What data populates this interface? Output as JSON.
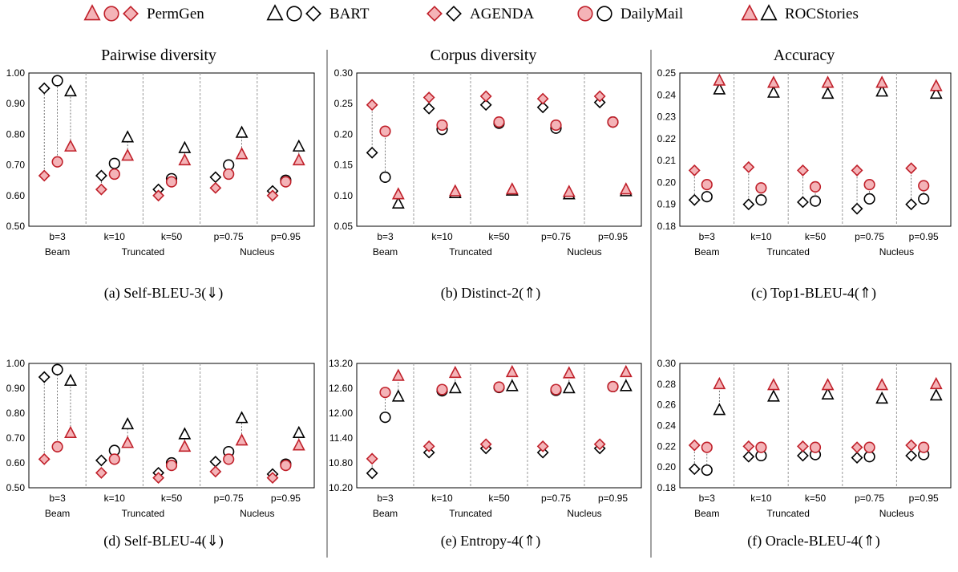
{
  "legend": {
    "items": [
      {
        "label": "PermGen",
        "symbols": [
          "triangle",
          "circle",
          "diamond"
        ],
        "style": "permgen"
      },
      {
        "label": "BART",
        "symbols": [
          "triangle",
          "circle",
          "diamond"
        ],
        "style": "bart"
      },
      {
        "label": "AGENDA",
        "symbols": [
          "diamond-red",
          "diamond-black"
        ]
      },
      {
        "label": "DailyMail",
        "symbols": [
          "circle-red",
          "circle-black"
        ]
      },
      {
        "label": "ROCStories",
        "symbols": [
          "triangle-red",
          "triangle-black"
        ]
      }
    ]
  },
  "column_titles": [
    "Pairwise diversity",
    "Corpus diversity",
    "Accuracy"
  ],
  "colors": {
    "permgen_fill": "#f4b3b7",
    "permgen_stroke": "#c0202a",
    "bart_stroke": "#000000"
  },
  "chart_data": [
    {
      "type": "scatter",
      "caption": "(a)  Self-BLEU-3(⇓)",
      "ylim": [
        0.5,
        1.0
      ],
      "yticks": [
        "0.50",
        "0.60",
        "0.70",
        "0.80",
        "0.90",
        "1.00"
      ],
      "categories": [
        "b=3",
        "k=10",
        "k=50",
        "p=0.75",
        "p=0.95"
      ],
      "groups": [
        {
          "label": "Beam",
          "span": [
            0,
            0
          ]
        },
        {
          "label": "Truncated",
          "span": [
            1,
            2
          ]
        },
        {
          "label": "Nucleus",
          "span": [
            3,
            4
          ]
        }
      ],
      "series": [
        {
          "name": "AGENDA",
          "model": "PermGen",
          "values": [
            0.665,
            0.62,
            0.6,
            0.625,
            0.6
          ]
        },
        {
          "name": "AGENDA",
          "model": "BART",
          "values": [
            0.95,
            0.665,
            0.62,
            0.66,
            0.615
          ]
        },
        {
          "name": "DailyMail",
          "model": "PermGen",
          "values": [
            0.71,
            0.67,
            0.645,
            0.67,
            0.645
          ]
        },
        {
          "name": "DailyMail",
          "model": "BART",
          "values": [
            0.975,
            0.705,
            0.655,
            0.7,
            0.65
          ]
        },
        {
          "name": "ROCStories",
          "model": "PermGen",
          "values": [
            0.76,
            0.73,
            0.715,
            0.735,
            0.715
          ]
        },
        {
          "name": "ROCStories",
          "model": "BART",
          "values": [
            0.94,
            0.79,
            0.755,
            0.805,
            0.76
          ]
        }
      ]
    },
    {
      "type": "scatter",
      "caption": "(b)  Distinct-2(⇑)",
      "ylim": [
        0.05,
        0.3
      ],
      "yticks": [
        "0.05",
        "0.10",
        "0.15",
        "0.20",
        "0.25",
        "0.30"
      ],
      "categories": [
        "b=3",
        "k=10",
        "k=50",
        "p=0.75",
        "p=0.95"
      ],
      "groups": [
        {
          "label": "Beam",
          "span": [
            0,
            0
          ]
        },
        {
          "label": "Truncated",
          "span": [
            1,
            2
          ]
        },
        {
          "label": "Nucleus",
          "span": [
            3,
            4
          ]
        }
      ],
      "series": [
        {
          "name": "AGENDA",
          "model": "PermGen",
          "values": [
            0.248,
            0.26,
            0.262,
            0.258,
            0.262
          ]
        },
        {
          "name": "AGENDA",
          "model": "BART",
          "values": [
            0.17,
            0.242,
            0.248,
            0.244,
            0.252
          ]
        },
        {
          "name": "DailyMail",
          "model": "PermGen",
          "values": [
            0.205,
            0.215,
            0.22,
            0.215,
            0.22
          ]
        },
        {
          "name": "DailyMail",
          "model": "BART",
          "values": [
            0.13,
            0.208,
            0.218,
            0.21,
            0.22
          ]
        },
        {
          "name": "ROCStories",
          "model": "PermGen",
          "values": [
            0.102,
            0.107,
            0.11,
            0.106,
            0.11
          ]
        },
        {
          "name": "ROCStories",
          "model": "BART",
          "values": [
            0.087,
            0.104,
            0.108,
            0.102,
            0.107
          ]
        }
      ]
    },
    {
      "type": "scatter",
      "caption": "(c)  Top1-BLEU-4(⇑)",
      "ylim": [
        0.18,
        0.25
      ],
      "yticks": [
        "0.18",
        "0.19",
        "0.20",
        "0.21",
        "0.22",
        "0.23",
        "0.24",
        "0.25"
      ],
      "categories": [
        "b=3",
        "k=10",
        "k=50",
        "p=0.75",
        "p=0.95"
      ],
      "groups": [
        {
          "label": "Beam",
          "span": [
            0,
            0
          ]
        },
        {
          "label": "Truncated",
          "span": [
            1,
            2
          ]
        },
        {
          "label": "Nucleus",
          "span": [
            3,
            4
          ]
        }
      ],
      "series": [
        {
          "name": "AGENDA",
          "model": "PermGen",
          "values": [
            0.2055,
            0.207,
            0.2055,
            0.2055,
            0.2065
          ]
        },
        {
          "name": "AGENDA",
          "model": "BART",
          "values": [
            0.192,
            0.19,
            0.191,
            0.188,
            0.19
          ]
        },
        {
          "name": "DailyMail",
          "model": "PermGen",
          "values": [
            0.199,
            0.1975,
            0.198,
            0.199,
            0.1985
          ]
        },
        {
          "name": "DailyMail",
          "model": "BART",
          "values": [
            0.1935,
            0.192,
            0.1915,
            0.1925,
            0.1925
          ]
        },
        {
          "name": "ROCStories",
          "model": "PermGen",
          "values": [
            0.2465,
            0.2455,
            0.2455,
            0.2455,
            0.244
          ]
        },
        {
          "name": "ROCStories",
          "model": "BART",
          "values": [
            0.2425,
            0.241,
            0.2405,
            0.2415,
            0.2405
          ]
        }
      ]
    },
    {
      "type": "scatter",
      "caption": "(d)  Self-BLEU-4(⇓)",
      "ylim": [
        0.5,
        1.0
      ],
      "yticks": [
        "0.50",
        "0.60",
        "0.70",
        "0.80",
        "0.90",
        "1.00"
      ],
      "categories": [
        "b=3",
        "k=10",
        "k=50",
        "p=0.75",
        "p=0.95"
      ],
      "groups": [
        {
          "label": "Beam",
          "span": [
            0,
            0
          ]
        },
        {
          "label": "Truncated",
          "span": [
            1,
            2
          ]
        },
        {
          "label": "Nucleus",
          "span": [
            3,
            4
          ]
        }
      ],
      "series": [
        {
          "name": "AGENDA",
          "model": "PermGen",
          "values": [
            0.615,
            0.56,
            0.54,
            0.565,
            0.54
          ]
        },
        {
          "name": "AGENDA",
          "model": "BART",
          "values": [
            0.945,
            0.61,
            0.56,
            0.605,
            0.555
          ]
        },
        {
          "name": "DailyMail",
          "model": "PermGen",
          "values": [
            0.665,
            0.615,
            0.59,
            0.615,
            0.59
          ]
        },
        {
          "name": "DailyMail",
          "model": "BART",
          "values": [
            0.975,
            0.65,
            0.6,
            0.645,
            0.595
          ]
        },
        {
          "name": "ROCStories",
          "model": "PermGen",
          "values": [
            0.72,
            0.68,
            0.665,
            0.69,
            0.67
          ]
        },
        {
          "name": "ROCStories",
          "model": "BART",
          "values": [
            0.93,
            0.755,
            0.715,
            0.78,
            0.72
          ]
        }
      ]
    },
    {
      "type": "scatter",
      "caption": "(e)  Entropy-4(⇑)",
      "ylim": [
        10.2,
        13.2
      ],
      "yticks": [
        "10.20",
        "10.80",
        "11.40",
        "12.00",
        "12.60",
        "13.20"
      ],
      "categories": [
        "b=3",
        "k=10",
        "k=50",
        "p=0.75",
        "p=0.95"
      ],
      "groups": [
        {
          "label": "Beam",
          "span": [
            0,
            0
          ]
        },
        {
          "label": "Truncated",
          "span": [
            1,
            2
          ]
        },
        {
          "label": "Nucleus",
          "span": [
            3,
            4
          ]
        }
      ],
      "series": [
        {
          "name": "AGENDA",
          "model": "PermGen",
          "values": [
            10.9,
            11.2,
            11.25,
            11.2,
            11.25
          ]
        },
        {
          "name": "AGENDA",
          "model": "BART",
          "values": [
            10.55,
            11.05,
            11.15,
            11.05,
            11.15
          ]
        },
        {
          "name": "DailyMail",
          "model": "PermGen",
          "values": [
            12.5,
            12.57,
            12.63,
            12.57,
            12.64
          ]
        },
        {
          "name": "DailyMail",
          "model": "BART",
          "values": [
            11.9,
            12.54,
            12.62,
            12.55,
            12.64
          ]
        },
        {
          "name": "ROCStories",
          "model": "PermGen",
          "values": [
            12.9,
            12.97,
            12.99,
            12.96,
            12.99
          ]
        },
        {
          "name": "ROCStories",
          "model": "BART",
          "values": [
            12.4,
            12.6,
            12.65,
            12.6,
            12.65
          ]
        }
      ]
    },
    {
      "type": "scatter",
      "caption": "(f)  Oracle-BLEU-4(⇑)",
      "ylim": [
        0.18,
        0.3
      ],
      "yticks": [
        "0.18",
        "0.20",
        "0.22",
        "0.24",
        "0.26",
        "0.28",
        "0.30"
      ],
      "categories": [
        "b=3",
        "k=10",
        "k=50",
        "p=0.75",
        "p=0.95"
      ],
      "groups": [
        {
          "label": "Beam",
          "span": [
            0,
            0
          ]
        },
        {
          "label": "Truncated",
          "span": [
            1,
            2
          ]
        },
        {
          "label": "Nucleus",
          "span": [
            3,
            4
          ]
        }
      ],
      "series": [
        {
          "name": "AGENDA",
          "model": "PermGen",
          "values": [
            0.221,
            0.22,
            0.22,
            0.219,
            0.221
          ]
        },
        {
          "name": "AGENDA",
          "model": "BART",
          "values": [
            0.198,
            0.21,
            0.211,
            0.209,
            0.211
          ]
        },
        {
          "name": "DailyMail",
          "model": "PermGen",
          "values": [
            0.219,
            0.219,
            0.219,
            0.219,
            0.219
          ]
        },
        {
          "name": "DailyMail",
          "model": "BART",
          "values": [
            0.197,
            0.211,
            0.212,
            0.21,
            0.212
          ]
        },
        {
          "name": "ROCStories",
          "model": "PermGen",
          "values": [
            0.28,
            0.279,
            0.279,
            0.279,
            0.28
          ]
        },
        {
          "name": "ROCStories",
          "model": "BART",
          "values": [
            0.255,
            0.268,
            0.27,
            0.266,
            0.269
          ]
        }
      ]
    }
  ]
}
